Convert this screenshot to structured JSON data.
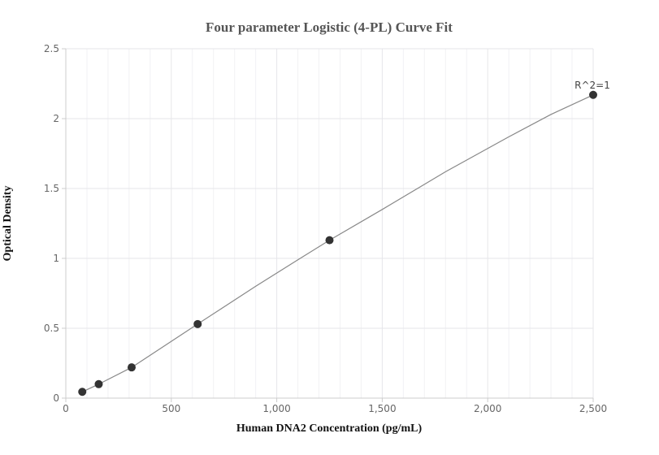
{
  "chart_data": {
    "type": "scatter",
    "title": "Four parameter Logistic (4-PL) Curve Fit",
    "xlabel": "Human DNA2 Concentration (pg/mL)",
    "ylabel": "Optical Density",
    "xlim": [
      0,
      2500
    ],
    "ylim": [
      0,
      2.5
    ],
    "x_ticks": [
      0,
      500,
      1000,
      1500,
      2000,
      2500
    ],
    "x_tick_labels": [
      "0",
      "500",
      "1,000",
      "1,500",
      "2,000",
      "2,500"
    ],
    "y_ticks": [
      0,
      0.5,
      1,
      1.5,
      2,
      2.5
    ],
    "y_tick_labels": [
      "0",
      "0.5",
      "1",
      "1.5",
      "2",
      "2.5"
    ],
    "x_minor_step": 100,
    "grid": true,
    "points": [
      {
        "x": 78,
        "y": 0.045
      },
      {
        "x": 156,
        "y": 0.1
      },
      {
        "x": 312,
        "y": 0.22
      },
      {
        "x": 625,
        "y": 0.53
      },
      {
        "x": 1250,
        "y": 1.13
      },
      {
        "x": 2500,
        "y": 2.17
      }
    ],
    "fit_curve": [
      [
        78,
        0.045
      ],
      [
        156,
        0.1
      ],
      [
        312,
        0.22
      ],
      [
        625,
        0.53
      ],
      [
        900,
        0.8
      ],
      [
        1100,
        0.99
      ],
      [
        1250,
        1.13
      ],
      [
        1500,
        1.35
      ],
      [
        1800,
        1.62
      ],
      [
        2100,
        1.87
      ],
      [
        2300,
        2.03
      ],
      [
        2500,
        2.17
      ]
    ],
    "annotation": "R^2=1",
    "colors": {
      "point": "#333333",
      "line": "#888888",
      "grid": "#e6e6ea",
      "axis": "#cccccc"
    }
  }
}
